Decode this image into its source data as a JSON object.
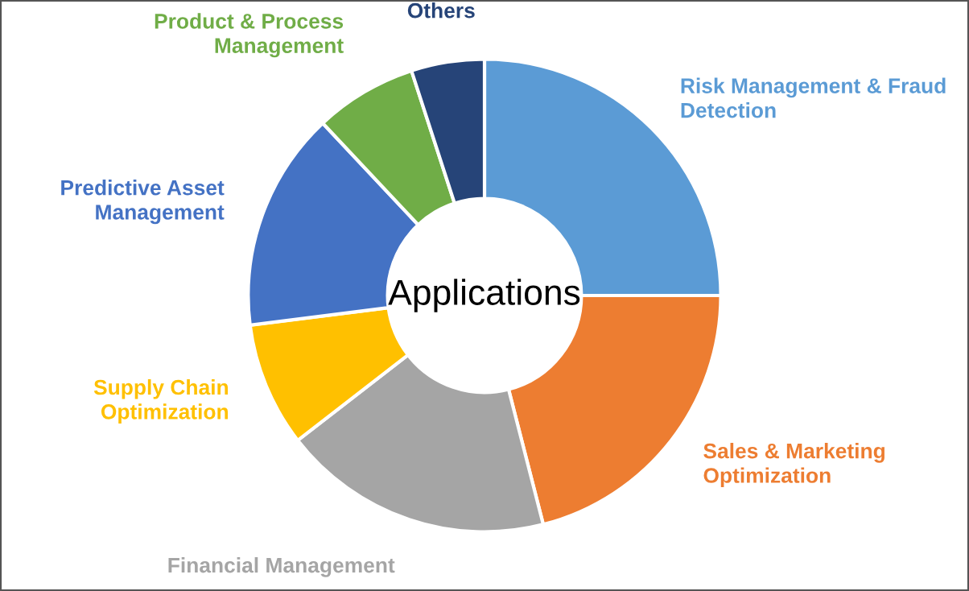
{
  "chart_data": {
    "type": "donut",
    "title": "Applications",
    "categories": [
      "Risk Management & Fraud\nDetection",
      "Sales & Marketing\nOptimization",
      "Financial Management",
      "Supply Chain\nOptimization",
      "Predictive Asset\nManagement",
      "Product & Process\nManagement",
      "Others"
    ],
    "values": [
      25,
      21,
      18.5,
      8.5,
      15,
      7,
      5
    ],
    "colors": [
      "#5b9bd5",
      "#ed7d31",
      "#a5a5a5",
      "#ffc000",
      "#4472c4",
      "#70ad47",
      "#264478"
    ],
    "legend": false
  }
}
